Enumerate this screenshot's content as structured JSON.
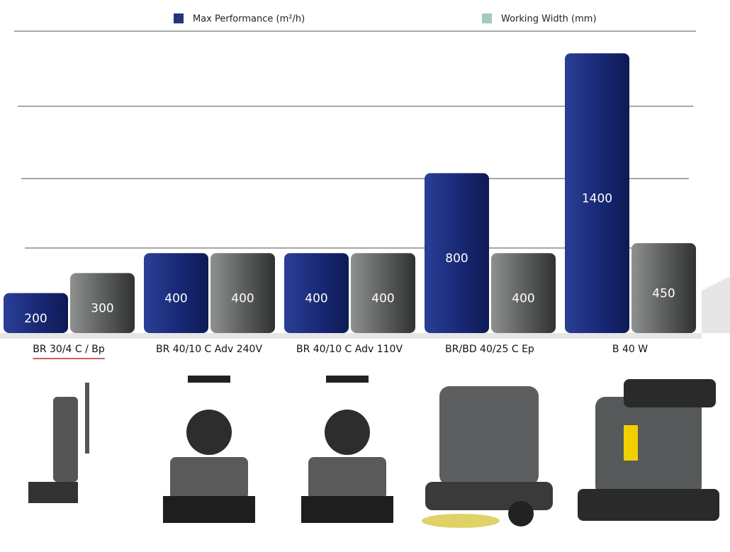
{
  "chart_data": {
    "type": "bar",
    "categories": [
      "BR 30/4 C / Bp",
      "BR 40/10 C Adv 240V",
      "BR 40/10 C Adv 110V",
      "BR/BD 40/25 C Ep",
      "B 40 W"
    ],
    "series": [
      {
        "name": "Max Performance (m²/h)",
        "color": "#23357f",
        "values": [
          200,
          400,
          400,
          800,
          1400
        ]
      },
      {
        "name": "Working Width (mm)",
        "color": "#a3cdb8",
        "values": [
          300,
          400,
          400,
          400,
          450
        ]
      }
    ],
    "ylim": [
      0,
      1500
    ]
  }
}
